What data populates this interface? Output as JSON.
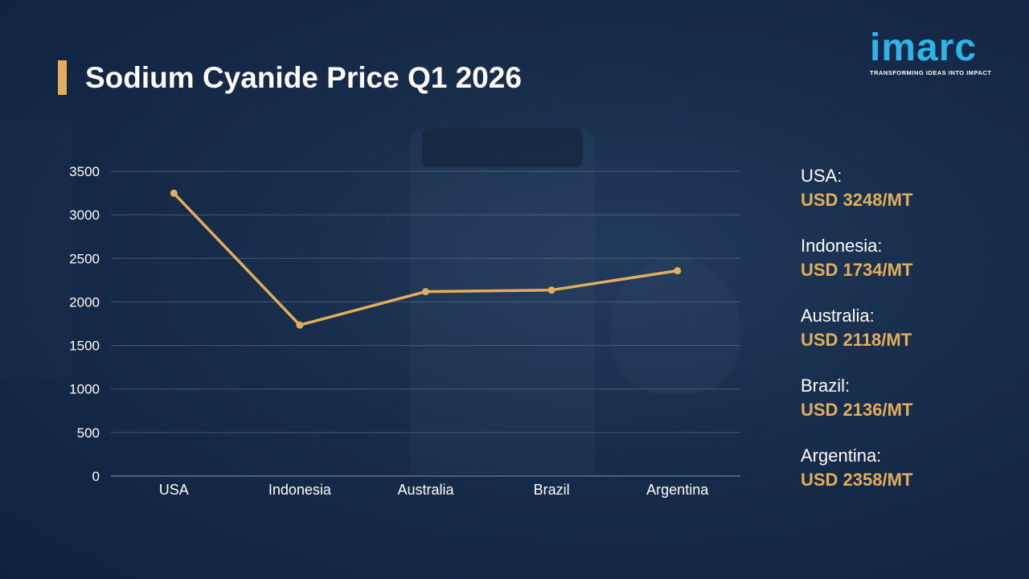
{
  "title": "Sodium Cyanide Price Q1 2026",
  "logo": {
    "word": "imarc",
    "tagline": "TRANSFORMING IDEAS INTO IMPACT"
  },
  "colors": {
    "accent": "#e2ae5a",
    "line": "#e2ae5a",
    "background": "#172c4a",
    "logo": "#2fb4e8"
  },
  "chart_data": {
    "type": "line",
    "categories": [
      "USA",
      "Indonesia",
      "Australia",
      "Brazil",
      "Argentina"
    ],
    "series": [
      {
        "values": [
          3248,
          1734,
          2118,
          2136,
          2358
        ]
      }
    ],
    "yticks": [
      "0",
      "500",
      "1000",
      "1500",
      "2000",
      "2500",
      "3000",
      "3500"
    ],
    "ylim": [
      0,
      3500
    ],
    "grid": true,
    "xlabel": "",
    "ylabel": ""
  },
  "legend": [
    {
      "country": "USA:",
      "price": "USD 3248/MT"
    },
    {
      "country": "Indonesia:",
      "price": "USD 1734/MT"
    },
    {
      "country": "Australia:",
      "price": "USD 2118/MT"
    },
    {
      "country": "Brazil:",
      "price": "USD 2136/MT"
    },
    {
      "country": "Argentina:",
      "price": "USD 2358/MT"
    }
  ]
}
